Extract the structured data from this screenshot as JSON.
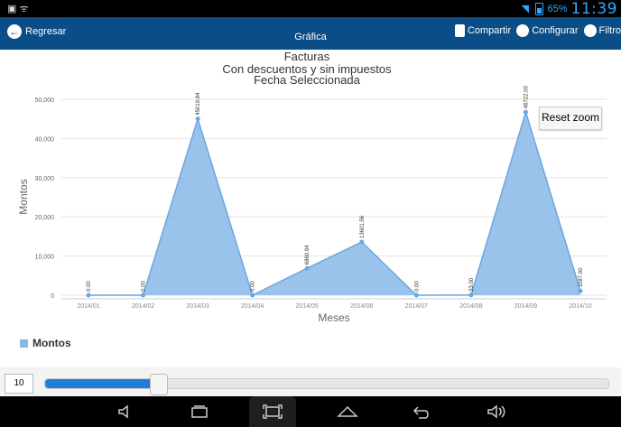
{
  "status_bar": {
    "battery": "65%",
    "time": "11:39",
    "wifi_icon": "wifi-icon",
    "battery_icon": "battery-icon"
  },
  "action_bar": {
    "back_label": "Regresar",
    "title": "Gráfica",
    "actions": [
      {
        "label": "Compartir",
        "icon": "share-icon"
      },
      {
        "label": "Configurar",
        "icon": "settings-icon"
      },
      {
        "label": "Filtro",
        "icon": "filter-icon"
      }
    ],
    "color": "#0b4d86"
  },
  "chart_data": {
    "type": "area",
    "title": "Facturas",
    "subtitle_1": "Con descuentos y sin impuestos",
    "subtitle_2": "Fecha Seleccionada",
    "xlabel": "Meses",
    "ylabel": "Montos",
    "categories": [
      "2014/01",
      "2014/02",
      "2014/03",
      "2014/04",
      "2014/05",
      "2014/06",
      "2014/07",
      "2014/08",
      "2014/09",
      "2014/10"
    ],
    "series": [
      {
        "name": "Montos",
        "values": [
          0,
          0,
          45019.84,
          0,
          6860.94,
          13601.56,
          0,
          33,
          46722,
          1087
        ],
        "labels": [
          "0.00",
          "0.00",
          "45019.84",
          "0.00",
          "6860.94",
          "13601.56",
          "0.00",
          "33.00",
          "46722.00",
          "1087.00"
        ]
      }
    ],
    "yticks": [
      "0",
      "10,000",
      "20,000",
      "30,000",
      "40,000",
      "50,000"
    ],
    "ylim": [
      0,
      50000
    ],
    "grid": true,
    "legend_position": "bottom-left",
    "series_color": "#88b8e8",
    "line_color": "#6aa6e0"
  },
  "reset_zoom_label": "Reset zoom",
  "slider": {
    "input_value": "10",
    "fill_fraction": 0.2
  },
  "nav_bar": {
    "icons": [
      "volume-down-icon",
      "recent-apps-icon",
      "screenshot-icon",
      "home-icon",
      "back-icon",
      "volume-up-icon"
    ]
  }
}
